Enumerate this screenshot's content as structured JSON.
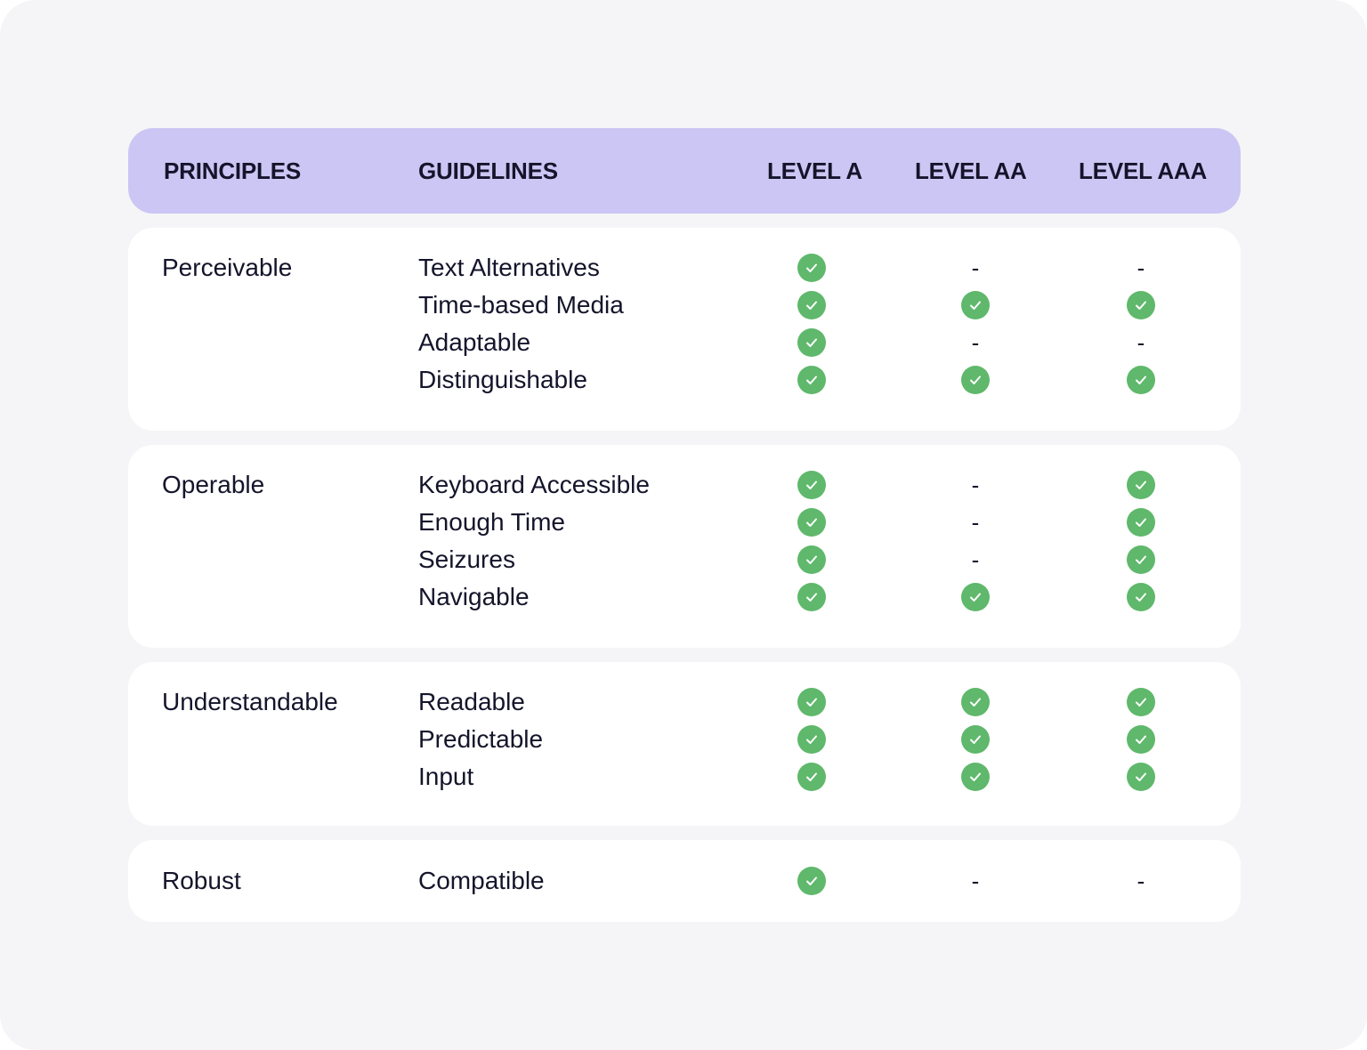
{
  "colors": {
    "header_bg": "#cbc6f3",
    "check_green": "#5fb86b",
    "card_bg": "#ffffff",
    "page_bg": "#f5f5f7"
  },
  "header": {
    "principles": "PRINCIPLES",
    "guidelines": "GUIDELINES",
    "level_a": "LEVEL A",
    "level_aa": "LEVEL AA",
    "level_aaa": "LEVEL AAA"
  },
  "dash_symbol": "-",
  "groups": [
    {
      "principle": "Perceivable",
      "rows": [
        {
          "guideline": "Text Alternatives",
          "a": true,
          "aa": false,
          "aaa": false
        },
        {
          "guideline": "Time-based Media",
          "a": true,
          "aa": true,
          "aaa": true
        },
        {
          "guideline": "Adaptable",
          "a": true,
          "aa": false,
          "aaa": false
        },
        {
          "guideline": "Distinguishable",
          "a": true,
          "aa": true,
          "aaa": true
        }
      ]
    },
    {
      "principle": "Operable",
      "rows": [
        {
          "guideline": "Keyboard Accessible",
          "a": true,
          "aa": false,
          "aaa": true
        },
        {
          "guideline": "Enough Time",
          "a": true,
          "aa": false,
          "aaa": true
        },
        {
          "guideline": "Seizures",
          "a": true,
          "aa": false,
          "aaa": true
        },
        {
          "guideline": "Navigable",
          "a": true,
          "aa": true,
          "aaa": true
        }
      ]
    },
    {
      "principle": "Understandable",
      "rows": [
        {
          "guideline": "Readable",
          "a": true,
          "aa": true,
          "aaa": true
        },
        {
          "guideline": "Predictable",
          "a": true,
          "aa": true,
          "aaa": true
        },
        {
          "guideline": "Input",
          "a": true,
          "aa": true,
          "aaa": true
        }
      ]
    },
    {
      "principle": "Robust",
      "rows": [
        {
          "guideline": "Compatible",
          "a": true,
          "aa": false,
          "aaa": false
        }
      ]
    }
  ]
}
